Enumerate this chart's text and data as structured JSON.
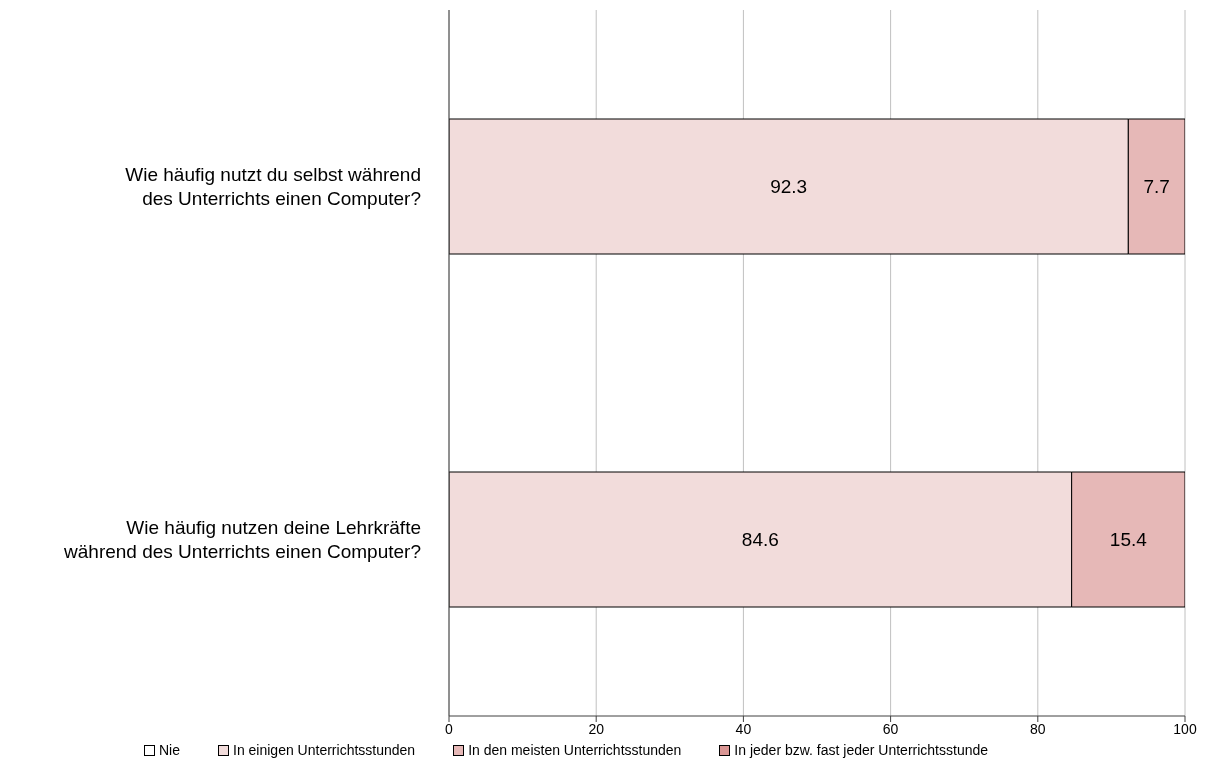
{
  "chart_data": {
    "type": "bar",
    "orientation": "horizontal",
    "stacked": true,
    "categories": [
      "Wie häufig nutzt du selbst während des Unterrichts einen Computer?",
      "Wie häufig nutzen deine Lehrkräfte während des Unterrichts einen Computer?"
    ],
    "series": [
      {
        "name": "Nie",
        "color": "#ffffff",
        "values": [
          0,
          0
        ],
        "value_labels": [
          null,
          null
        ]
      },
      {
        "name": "In einigen Unterrichtsstunden",
        "color": "#f2dcdb",
        "values": [
          92.3,
          84.6
        ],
        "value_labels": [
          "92.3",
          "84.6"
        ]
      },
      {
        "name": "In den meisten Unterrichtsstunden",
        "color": "#e6b8b7",
        "values": [
          7.7,
          15.4
        ],
        "value_labels": [
          "7.7",
          "15.4"
        ]
      },
      {
        "name": "In jeder bzw. fast jeder Unterrichtsstunde",
        "color": "#da9694",
        "values": [
          0,
          0
        ],
        "value_labels": [
          null,
          null
        ]
      }
    ],
    "xlim": [
      0,
      100
    ],
    "xticks": [
      0,
      20,
      40,
      60,
      80,
      100
    ],
    "grid": "x",
    "legend": "bottom"
  }
}
